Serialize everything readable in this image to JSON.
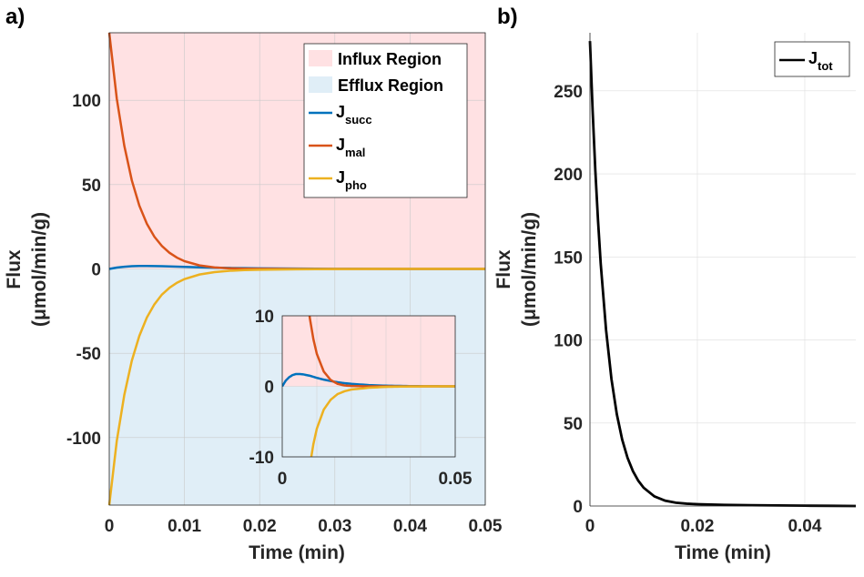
{
  "chart_data": [
    {
      "panel_label": "a)",
      "type": "line",
      "xlabel": "Time (min)",
      "ylabel_line1": "Flux",
      "ylabel_line2": "(μmol/min/g)",
      "xlim": [
        0,
        0.05
      ],
      "ylim": [
        -140,
        140
      ],
      "xticks": [
        0,
        0.01,
        0.02,
        0.03,
        0.04,
        0.05
      ],
      "xtick_labels": [
        "0",
        "0.01",
        "0.02",
        "0.03",
        "0.04",
        "0.05"
      ],
      "yticks": [
        -100,
        -50,
        0,
        50,
        100
      ],
      "ytick_labels": [
        "-100",
        "-50",
        "0",
        "50",
        "100"
      ],
      "grid": true,
      "legend_position": "top-right",
      "regions": [
        {
          "name": "Influx Region",
          "y_range": [
            0,
            140
          ],
          "color": "#ffe1e3"
        },
        {
          "name": "Efflux Region",
          "y_range": [
            -140,
            0
          ],
          "color": "#e0eef7"
        }
      ],
      "series": [
        {
          "name_main": "J",
          "name_sub": "succ",
          "color": "#0072bd",
          "x": [
            0,
            0.001,
            0.002,
            0.003,
            0.004,
            0.005,
            0.006,
            0.007,
            0.008,
            0.009,
            0.01,
            0.012,
            0.014,
            0.016,
            0.018,
            0.02,
            0.025,
            0.03,
            0.035,
            0.04,
            0.045,
            0.05
          ],
          "y": [
            0,
            0.8,
            1.3,
            1.6,
            1.75,
            1.75,
            1.7,
            1.6,
            1.5,
            1.35,
            1.2,
            0.95,
            0.75,
            0.58,
            0.45,
            0.35,
            0.18,
            0.09,
            0.05,
            0.02,
            0.01,
            0
          ]
        },
        {
          "name_main": "J",
          "name_sub": "mal",
          "color": "#d95319",
          "x": [
            0,
            0.001,
            0.002,
            0.003,
            0.004,
            0.005,
            0.006,
            0.007,
            0.008,
            0.009,
            0.01,
            0.012,
            0.014,
            0.016,
            0.018,
            0.02,
            0.025,
            0.03,
            0.035,
            0.04,
            0.045,
            0.05
          ],
          "y": [
            140,
            101,
            73,
            52.5,
            37.5,
            26.8,
            19.1,
            13.6,
            9.6,
            6.7,
            4.6,
            2.1,
            0.9,
            0.35,
            0.12,
            0.05,
            0,
            0,
            0,
            0,
            0,
            0
          ]
        },
        {
          "name_main": "J",
          "name_sub": "pho",
          "color": "#edb120",
          "x": [
            0,
            0.001,
            0.002,
            0.003,
            0.004,
            0.005,
            0.006,
            0.007,
            0.008,
            0.009,
            0.01,
            0.012,
            0.014,
            0.016,
            0.018,
            0.02,
            0.025,
            0.03,
            0.035,
            0.04,
            0.045,
            0.05
          ],
          "y": [
            -140,
            -102,
            -74.7,
            -54.4,
            -39.7,
            -28.8,
            -21,
            -15.2,
            -11.2,
            -8.2,
            -6,
            -3.3,
            -1.9,
            -1.1,
            -0.7,
            -0.45,
            -0.2,
            -0.08,
            -0.03,
            -0.01,
            0,
            0
          ]
        }
      ],
      "inset": {
        "xlim": [
          0,
          0.05
        ],
        "ylim": [
          -10,
          10
        ],
        "xticks": [
          0,
          0.05
        ],
        "xtick_labels": [
          "0",
          "0.05"
        ],
        "yticks": [
          -10,
          0,
          10
        ],
        "ytick_labels": [
          "-10",
          "0",
          "10"
        ]
      }
    },
    {
      "panel_label": "b)",
      "type": "line",
      "xlabel": "Time (min)",
      "ylabel_line1": "Flux",
      "ylabel_line2": "(μmol/min/g)",
      "xlim": [
        0,
        0.0495
      ],
      "ylim": [
        0,
        285
      ],
      "xticks": [
        0,
        0.02,
        0.04
      ],
      "xtick_labels": [
        "0",
        "0.02",
        "0.04"
      ],
      "yticks": [
        0,
        50,
        100,
        150,
        200,
        250
      ],
      "ytick_labels": [
        "0",
        "50",
        "100",
        "150",
        "200",
        "250"
      ],
      "grid": true,
      "legend_position": "top-right",
      "series": [
        {
          "name_main": "J",
          "name_sub": "tot",
          "color": "#000000",
          "x": [
            0,
            0.0005,
            0.001,
            0.0015,
            0.002,
            0.003,
            0.004,
            0.005,
            0.006,
            0.007,
            0.008,
            0.009,
            0.01,
            0.012,
            0.014,
            0.016,
            0.018,
            0.02,
            0.025,
            0.03,
            0.035,
            0.04,
            0.045,
            0.0495
          ],
          "y": [
            280,
            238,
            202,
            172,
            146,
            106,
            76.5,
            55.3,
            40,
            29,
            21,
            15.2,
            11,
            5.8,
            3.2,
            2,
            1.4,
            1.1,
            0.7,
            0.5,
            0.35,
            0.2,
            0.1,
            0
          ]
        }
      ]
    }
  ]
}
